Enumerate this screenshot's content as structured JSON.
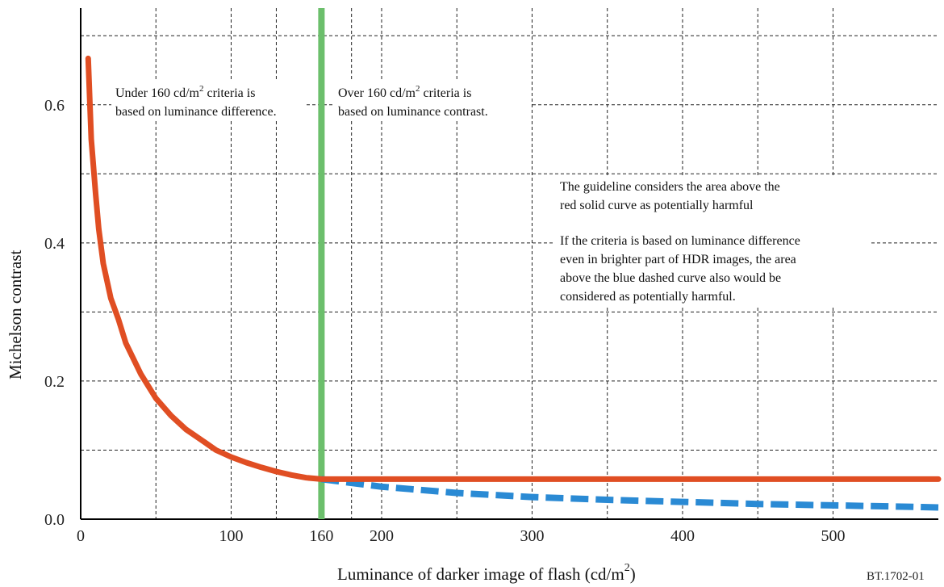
{
  "chart_data": {
    "type": "line",
    "xlabel_text": "Luminance of darker image of flash (cd/m",
    "xlabel_sup": "2",
    "xlabel_end": ")",
    "ylabel": "Michelson contrast",
    "xlim": [
      0,
      570
    ],
    "ylim": [
      0,
      0.74
    ],
    "grid": true,
    "x_ticks": [
      {
        "value": 0,
        "label": "0"
      },
      {
        "value": 100,
        "label": "100"
      },
      {
        "value": 160,
        "label": "160"
      },
      {
        "value": 200,
        "label": "200"
      },
      {
        "value": 300,
        "label": "300"
      },
      {
        "value": 400,
        "label": "400"
      },
      {
        "value": 500,
        "label": "500"
      }
    ],
    "y_ticks": [
      {
        "value": 0,
        "label": "0.0"
      },
      {
        "value": 0.2,
        "label": "0.2"
      },
      {
        "value": 0.4,
        "label": "0.4"
      },
      {
        "value": 0.6,
        "label": "0.6"
      }
    ],
    "x_grid": [
      50,
      100,
      130,
      160,
      180,
      200,
      250,
      300,
      350,
      400,
      450,
      500
    ],
    "y_grid": [
      0.1,
      0.2,
      0.3,
      0.4,
      0.5,
      0.6,
      0.7
    ],
    "threshold_x": 160,
    "series": [
      {
        "style": "solid",
        "color": "#e04e23",
        "x": [
          5,
          7,
          10,
          12,
          15,
          20,
          25,
          30,
          40,
          50,
          60,
          70,
          80,
          90,
          100,
          110,
          120,
          130,
          140,
          150,
          160,
          200,
          250,
          300,
          350,
          400,
          450,
          500,
          550,
          570
        ],
        "y": [
          0.667,
          0.55,
          0.47,
          0.42,
          0.37,
          0.32,
          0.29,
          0.255,
          0.21,
          0.175,
          0.15,
          0.13,
          0.115,
          0.1,
          0.09,
          0.082,
          0.075,
          0.069,
          0.064,
          0.06,
          0.058,
          0.058,
          0.058,
          0.058,
          0.058,
          0.058,
          0.058,
          0.058,
          0.058,
          0.058
        ]
      },
      {
        "style": "dashed",
        "color": "#2a8ad4",
        "x": [
          160,
          200,
          250,
          300,
          350,
          400,
          450,
          500,
          550,
          570
        ],
        "y": [
          0.058,
          0.047,
          0.038,
          0.032,
          0.028,
          0.025,
          0.022,
          0.02,
          0.018,
          0.017
        ]
      }
    ],
    "annotations": {
      "left": {
        "line1_pre": "Under 160 cd/m",
        "line1_sup": "2",
        "line1_post": " criteria is",
        "line2": "based on luminance difference."
      },
      "right": {
        "line1_pre": "Over 160 cd/m",
        "line1_sup": "2",
        "line1_post": " criteria is",
        "line2": "based on luminance contrast."
      },
      "guideline": [
        "The guideline considers the area above the",
        "red solid curve as potentially harmful"
      ],
      "hdr": [
        "If the criteria is based on luminance difference",
        "even in brighter part of HDR images, the area",
        "above the blue dashed curve also would be",
        "considered as potentially harmful."
      ]
    },
    "figure_code": "BT.1702-01"
  },
  "colors": {
    "threshold": "#6cbf6c",
    "grid": "#222222"
  }
}
